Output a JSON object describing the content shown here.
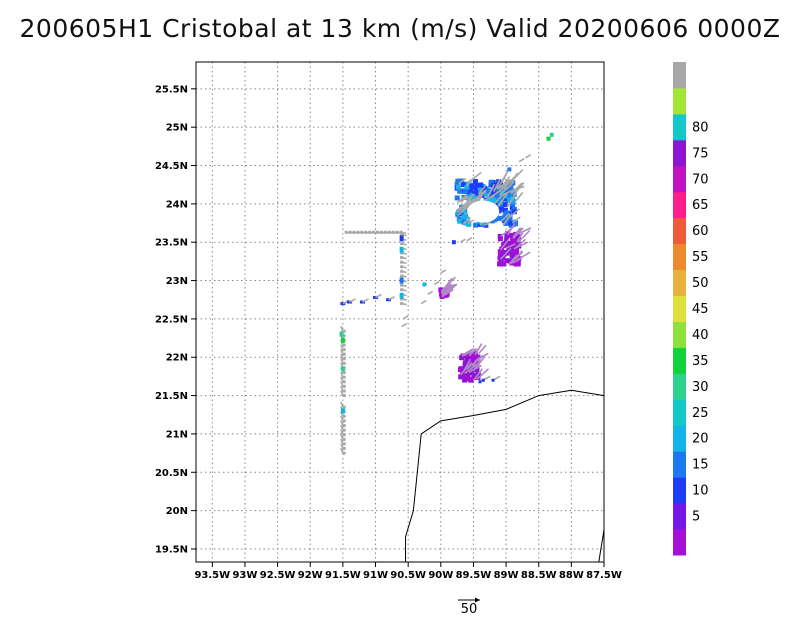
{
  "title": "200605H1 Cristobal at 13 km (m/s) Valid 20200606 0000Z",
  "map": {
    "lon_range": [
      -93.75,
      -87.5
    ],
    "lat_range": [
      19.33,
      25.85
    ],
    "grid": "dotted",
    "x_ticks": [
      "93.5W",
      "93W",
      "92.5W",
      "92W",
      "91.5W",
      "91W",
      "90.5W",
      "90W",
      "89.5W",
      "89W",
      "88.5W",
      "88W",
      "87.5W"
    ],
    "y_ticks": [
      "19.5N",
      "20N",
      "20.5N",
      "21N",
      "21.5N",
      "22N",
      "22.5N",
      "23N",
      "23.5N",
      "24N",
      "24.5N",
      "25N",
      "25.5N"
    ],
    "coastline": [
      [
        -90.54,
        19.33
      ],
      [
        -90.54,
        19.66
      ],
      [
        -90.42,
        20.0
      ],
      [
        -90.3,
        21.0
      ],
      [
        -90.0,
        21.17
      ],
      [
        -89.5,
        21.24
      ],
      [
        -89.0,
        21.32
      ],
      [
        -88.5,
        21.5
      ],
      [
        -88.0,
        21.57
      ],
      [
        -87.5,
        21.5
      ]
    ],
    "coastline_east": [
      [
        -87.58,
        19.33
      ],
      [
        -87.5,
        19.75
      ]
    ]
  },
  "colorbar": {
    "labels": [
      "5",
      "10",
      "15",
      "20",
      "25",
      "30",
      "35",
      "40",
      "45",
      "50",
      "55",
      "60",
      "65",
      "70",
      "75",
      "80"
    ],
    "colors": [
      "#a60fd6",
      "#7417e8",
      "#1f3cf5",
      "#1e78f0",
      "#13b4e8",
      "#12c8c8",
      "#2ad28e",
      "#12d23c",
      "#8ee03c",
      "#e0e03c",
      "#e8b03c",
      "#ec8a30",
      "#f05a3c",
      "#ff1e8c",
      "#c212c2",
      "#8c14d2",
      "#12c8c8",
      "#a0e632",
      "#a8a8a8"
    ]
  },
  "reference_vector": {
    "label": "50"
  },
  "wind_clusters": [
    {
      "name": "main-core",
      "lon": [
        -89.75,
        -88.85
      ],
      "lat": [
        23.72,
        24.3
      ],
      "colors": [
        "#1e78f0",
        "#13b4e8",
        "#1f3cf5"
      ]
    },
    {
      "name": "south-core",
      "lon": [
        -89.1,
        -88.8
      ],
      "lat": [
        23.2,
        23.62
      ],
      "colors": [
        "#a60fd6",
        "#8c14d2"
      ]
    },
    {
      "name": "southwest-blob",
      "lon": [
        -89.7,
        -89.42
      ],
      "lat": [
        21.7,
        22.05
      ],
      "colors": [
        "#a60fd6",
        "#8c14d2"
      ]
    },
    {
      "name": "isolated-spot",
      "lon": [
        -90.0,
        -89.9
      ],
      "lat": [
        22.78,
        22.88
      ],
      "colors": [
        "#a60fd6"
      ]
    }
  ]
}
